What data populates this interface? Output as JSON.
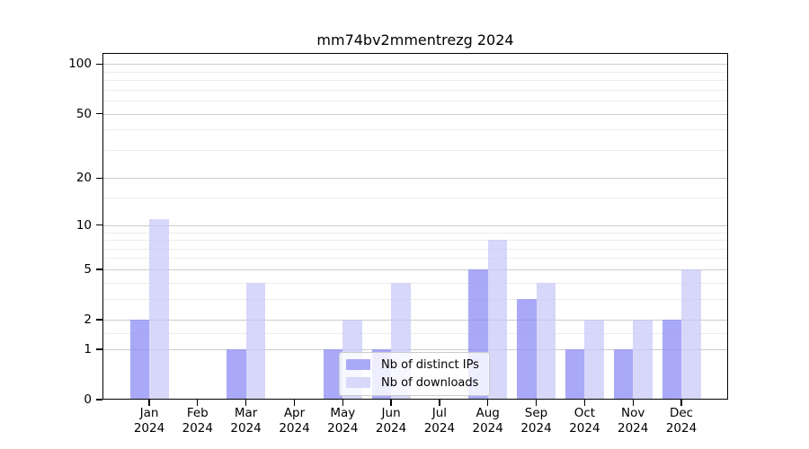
{
  "chart_data": {
    "type": "bar",
    "title": "mm74bv2mmentrezg 2024",
    "xlabel": "",
    "ylabel": "",
    "scale": "log1p",
    "ylim": [
      0,
      115
    ],
    "grid": "on",
    "legend_position": "inside lower-center",
    "categories": [
      "Jan",
      "Feb",
      "Mar",
      "Apr",
      "May",
      "Jun",
      "Jul",
      "Aug",
      "Sep",
      "Oct",
      "Nov",
      "Dec"
    ],
    "year_label": "2024",
    "y_ticks": [
      0,
      1,
      2,
      5,
      10,
      20,
      50,
      100
    ],
    "y_minor_gridlines": [
      1.5,
      3,
      4,
      6,
      7,
      8,
      9,
      15,
      30,
      40,
      60,
      70,
      80,
      90
    ],
    "series": [
      {
        "name": "Nb of distinct IPs",
        "color": "#a9a9f7",
        "fill": "rgba(136,136,245,0.72)",
        "values": [
          2,
          0,
          1,
          0,
          1,
          1,
          0,
          5,
          3,
          1,
          1,
          2
        ]
      },
      {
        "name": "Nb of downloads",
        "color": "#d8d8fa",
        "fill": "rgba(200,200,248,0.72)",
        "values": [
          11,
          0,
          4,
          0,
          2,
          4,
          0,
          8,
          4,
          2,
          2,
          5
        ]
      }
    ],
    "colors": {
      "major_grid": "#cccccc",
      "minor_grid": "#ececec",
      "axis": "#000000",
      "background": "#ffffff"
    }
  }
}
